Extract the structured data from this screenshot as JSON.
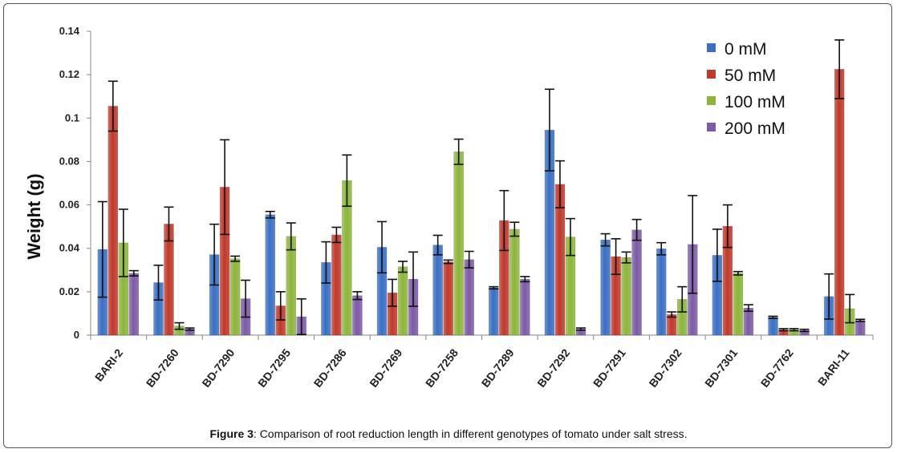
{
  "chart_data": {
    "type": "bar",
    "title": "",
    "xlabel": "",
    "ylabel": "Weight (g)",
    "ylim": [
      0,
      0.14
    ],
    "yticks": [
      "0",
      "0.02",
      "0.04",
      "0.06",
      "0.08",
      "0.1",
      "0.12",
      "0.14"
    ],
    "ytick_values": [
      0,
      0.02,
      0.04,
      0.06,
      0.08,
      0.1,
      0.12,
      0.14
    ],
    "grid": false,
    "legend_position": "top-right",
    "categories": [
      "BARI-2",
      "BD-7260",
      "BD-7290",
      "BD-7295",
      "BD-7286",
      "BD-7269",
      "BD-7258",
      "BD-7289",
      "BD-7292",
      "BD-7291",
      "BD-7302",
      "BD-7301",
      "BD-7762",
      "BARI-11"
    ],
    "series": [
      {
        "name": "0 mM",
        "color": "#3a6fc4",
        "values": [
          0.0395,
          0.0242,
          0.0371,
          0.0555,
          0.0335,
          0.0405,
          0.0415,
          0.0218,
          0.0945,
          0.0439,
          0.0398,
          0.0368,
          0.0082,
          0.0178
        ],
        "errors": [
          0.022,
          0.008,
          0.014,
          0.0015,
          0.0095,
          0.0118,
          0.0045,
          0.0005,
          0.0188,
          0.0028,
          0.0028,
          0.012,
          0.0005,
          0.0104
        ]
      },
      {
        "name": "50 mM",
        "color": "#c0392b",
        "values": [
          0.1055,
          0.0512,
          0.0682,
          0.0135,
          0.0462,
          0.0195,
          0.0338,
          0.0528,
          0.0695,
          0.0362,
          0.0095,
          0.0502,
          0.0025,
          0.1225
        ],
        "errors": [
          0.0115,
          0.0078,
          0.0218,
          0.0065,
          0.0035,
          0.0062,
          0.0008,
          0.0138,
          0.0108,
          0.0082,
          0.0012,
          0.0098,
          0.0005,
          0.0135
        ]
      },
      {
        "name": "100 mM",
        "color": "#8db53a",
        "values": [
          0.0425,
          0.0042,
          0.0352,
          0.0455,
          0.0712,
          0.0315,
          0.0845,
          0.0488,
          0.0452,
          0.0358,
          0.0165,
          0.0285,
          0.0025,
          0.0122
        ],
        "errors": [
          0.0155,
          0.0015,
          0.0012,
          0.0062,
          0.0118,
          0.0025,
          0.0058,
          0.0032,
          0.0085,
          0.0025,
          0.0058,
          0.0008,
          0.0005,
          0.0065
        ]
      },
      {
        "name": "200 mM",
        "color": "#7d5ba6",
        "values": [
          0.0285,
          0.0028,
          0.0168,
          0.0085,
          0.0182,
          0.0258,
          0.0348,
          0.0258,
          0.0028,
          0.0485,
          0.0418,
          0.0125,
          0.0022,
          0.0068
        ]
      },
      {
        "_": "placeholder"
      }
    ],
    "errors_200": [
      0.0012,
      0.0005,
      0.0085,
      0.0082,
      0.0018,
      0.0125,
      0.0038,
      0.0012,
      0.0005,
      0.0048,
      0.0225,
      0.0015,
      0.0005,
      0.0005
    ]
  },
  "caption": {
    "label": "Figure 3",
    "text": ": Comparison of root reduction length in different genotypes of tomato under salt stress."
  }
}
